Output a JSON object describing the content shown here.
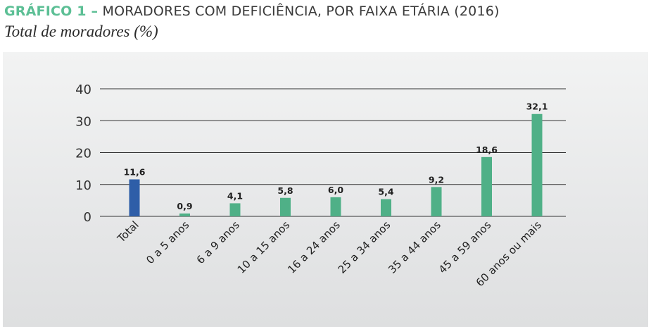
{
  "title": {
    "prefix": "GRÁFICO 1 –",
    "text": "MORADORES COM DEFICIÊNCIA, POR FAIXA ETÁRIA (2016)"
  },
  "subtitle": "Total de moradores (%)",
  "colors": {
    "title_accent": "#5cbf95",
    "total_bar": "#2e5ea8",
    "age_bars": "#4fb087",
    "gridline": "#333333",
    "panel_background": "#e8e9ea"
  },
  "chart_data": {
    "type": "bar",
    "title": "MORADORES COM DEFICIÊNCIA, POR FAIXA ETÁRIA (2016)",
    "subtitle": "Total de moradores (%)",
    "xlabel": "",
    "ylabel": "",
    "categories": [
      "Total",
      "0 a 5 anos",
      "6 a 9 anos",
      "10 a 15 anos",
      "16 a 24 anos",
      "25 a 34 anos",
      "35 a 44 anos",
      "45 a 59 anos",
      "60 anos ou mais"
    ],
    "values": [
      11.6,
      0.9,
      4.1,
      5.8,
      6.0,
      5.4,
      9.2,
      18.6,
      32.1
    ],
    "value_labels": [
      "11,6",
      "0,9",
      "4,1",
      "5,8",
      "6,0",
      "5,4",
      "9,2",
      "18,6",
      "32,1"
    ],
    "highlighted_category": "Total",
    "ylim": [
      0,
      40
    ],
    "yticks": [
      0,
      10,
      20,
      30,
      40
    ],
    "grid": true,
    "legend": "none"
  }
}
